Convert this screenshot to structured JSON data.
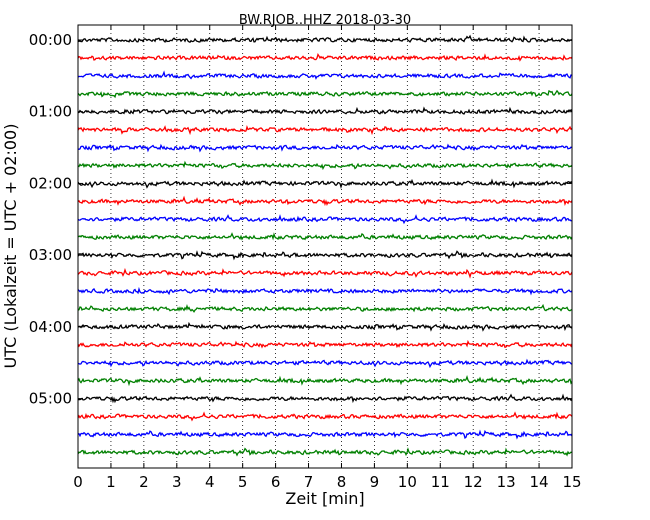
{
  "chart_data": {
    "type": "line",
    "title": "BW.RJOB..HHZ 2018-03-30",
    "xlabel": "Zeit  [min]",
    "ylabel": "UTC (Lokalzeit = UTC + 02:00)",
    "xlim": [
      0,
      15
    ],
    "xticks": [
      "0",
      "1",
      "2",
      "3",
      "4",
      "5",
      "6",
      "7",
      "8",
      "9",
      "10",
      "11",
      "12",
      "13",
      "14",
      "15"
    ],
    "yticks": [
      {
        "label": "00:00",
        "row": 0
      },
      {
        "label": "01:00",
        "row": 4
      },
      {
        "label": "02:00",
        "row": 8
      },
      {
        "label": "03:00",
        "row": 12
      },
      {
        "label": "04:00",
        "row": 16
      },
      {
        "label": "05:00",
        "row": 20
      }
    ],
    "row_minutes": 15,
    "row_count": 24,
    "row_colors": [
      "#000000",
      "#ff0000",
      "#0000ff",
      "#008000"
    ],
    "vertical_grid": "dotted",
    "series": [
      {
        "start": "00:00",
        "color": "#000000"
      },
      {
        "start": "00:15",
        "color": "#ff0000"
      },
      {
        "start": "00:30",
        "color": "#0000ff"
      },
      {
        "start": "00:45",
        "color": "#008000"
      },
      {
        "start": "01:00",
        "color": "#000000"
      },
      {
        "start": "01:15",
        "color": "#ff0000"
      },
      {
        "start": "01:30",
        "color": "#0000ff"
      },
      {
        "start": "01:45",
        "color": "#008000"
      },
      {
        "start": "02:00",
        "color": "#000000"
      },
      {
        "start": "02:15",
        "color": "#ff0000"
      },
      {
        "start": "02:30",
        "color": "#0000ff"
      },
      {
        "start": "02:45",
        "color": "#008000"
      },
      {
        "start": "03:00",
        "color": "#000000"
      },
      {
        "start": "03:15",
        "color": "#ff0000"
      },
      {
        "start": "03:30",
        "color": "#0000ff"
      },
      {
        "start": "03:45",
        "color": "#008000"
      },
      {
        "start": "04:00",
        "color": "#000000"
      },
      {
        "start": "04:15",
        "color": "#ff0000"
      },
      {
        "start": "04:30",
        "color": "#0000ff"
      },
      {
        "start": "04:45",
        "color": "#008000"
      },
      {
        "start": "05:00",
        "color": "#000000"
      },
      {
        "start": "05:15",
        "color": "#ff0000"
      },
      {
        "start": "05:30",
        "color": "#0000ff"
      },
      {
        "start": "05:45",
        "color": "#008000"
      }
    ]
  }
}
